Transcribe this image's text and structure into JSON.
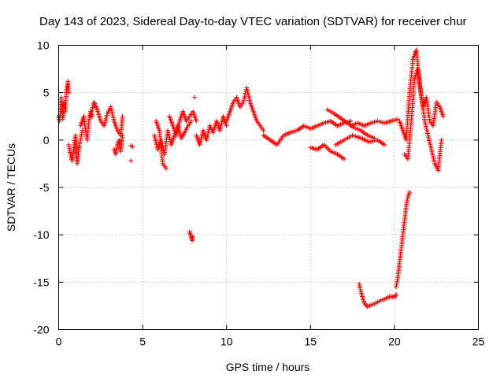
{
  "chart_data": {
    "type": "scatter",
    "title": "Day 143 of 2023, Sidereal Day-to-day VTEC variation (SDTVAR) for receiver chur",
    "xlabel": "GPS time / hours",
    "ylabel": "SDTVAR / TECUs",
    "xlim": [
      0,
      25
    ],
    "ylim": [
      -20,
      10
    ],
    "xticks": [
      "0",
      "5",
      "10",
      "15",
      "20",
      "25"
    ],
    "yticks": [
      "10",
      "5",
      "0",
      "-5",
      "-10",
      "-15",
      "-20"
    ],
    "grid": true,
    "marker": "+",
    "series": [
      {
        "name": "SDTVAR",
        "color": "#ff0000",
        "segments": [
          {
            "x": [
              0.0,
              0.05,
              0.1,
              0.15,
              0.2,
              0.25,
              0.3,
              0.35,
              0.4,
              0.45,
              0.5,
              0.55,
              0.6
            ],
            "y": [
              2.5,
              2.0,
              3.0,
              4.5,
              3.0,
              2.2,
              3.5,
              4.0,
              3.0,
              5.0,
              5.5,
              6.2,
              5.0
            ]
          },
          {
            "x": [
              0.6,
              0.7,
              0.8,
              0.9,
              1.0,
              1.1,
              1.2,
              1.3,
              1.4
            ],
            "y": [
              -0.5,
              -1.5,
              -2.2,
              -1.0,
              0.5,
              -2.5,
              -1.0,
              0.0,
              1.0
            ]
          },
          {
            "x": [
              1.3,
              1.4,
              1.5,
              1.6,
              1.7,
              1.8,
              1.9,
              2.0
            ],
            "y": [
              1.5,
              2.0,
              2.5,
              1.0,
              0.0,
              2.0,
              3.0,
              2.5
            ]
          },
          {
            "x": [
              1.9,
              2.1,
              2.3,
              2.5,
              2.7,
              2.9,
              3.1,
              3.3,
              3.5,
              3.7,
              3.8
            ],
            "y": [
              2.5,
              4.0,
              3.2,
              2.0,
              1.5,
              2.8,
              3.5,
              2.0,
              1.0,
              0.5,
              2.5
            ]
          },
          {
            "x": [
              3.3,
              3.4,
              3.5,
              3.6,
              3.7,
              3.8
            ],
            "y": [
              -1.0,
              -1.5,
              -0.5,
              0.0,
              -1.2,
              0.5
            ]
          },
          {
            "x": [
              4.3,
              4.4
            ],
            "y": [
              -0.6,
              -0.7
            ]
          },
          {
            "x": [
              4.3
            ],
            "y": [
              -2.2
            ]
          },
          {
            "x": [
              5.7,
              5.9,
              6.1,
              6.3,
              6.5,
              6.7,
              6.9,
              7.1,
              7.3,
              7.5,
              7.7,
              7.9
            ],
            "y": [
              0.5,
              -1.0,
              0.0,
              -1.5,
              1.0,
              -0.5,
              0.5,
              1.5,
              0.2,
              0.8,
              1.5,
              2.0
            ]
          },
          {
            "x": [
              5.8,
              6.0,
              6.2,
              6.4
            ],
            "y": [
              2.0,
              1.0,
              -2.5,
              -3.0
            ]
          },
          {
            "x": [
              6.6,
              6.8,
              7.0,
              7.2,
              7.4,
              7.6,
              7.8,
              8.0,
              8.2
            ],
            "y": [
              2.5,
              1.5,
              0.5,
              2.0,
              3.0,
              2.0,
              2.5,
              3.0,
              2.0
            ]
          },
          {
            "x": [
              7.8,
              7.85,
              7.9,
              7.95,
              8.0
            ],
            "y": [
              -9.7,
              -10.0,
              -10.3,
              -10.6,
              -10.2
            ]
          },
          {
            "x": [
              8.1
            ],
            "y": [
              4.5
            ]
          },
          {
            "x": [
              8.2,
              8.4,
              8.6,
              8.8,
              9.0,
              9.2,
              9.4,
              9.6,
              9.8,
              10.0
            ],
            "y": [
              0.5,
              -0.5,
              1.0,
              0.0,
              1.5,
              0.8,
              2.0,
              1.0,
              2.5,
              1.5
            ]
          },
          {
            "x": [
              10.0,
              10.2,
              10.4,
              10.6,
              10.8,
              11.0,
              11.2,
              11.4,
              11.6,
              11.8,
              12.0,
              12.2
            ],
            "y": [
              2.0,
              3.0,
              4.0,
              4.5,
              3.5,
              4.0,
              5.5,
              4.0,
              3.0,
              2.0,
              1.5,
              1.0
            ]
          },
          {
            "x": [
              12.2,
              12.6,
              13.0,
              13.4,
              13.8,
              14.2,
              14.6,
              15.0,
              15.4,
              15.8,
              16.2,
              16.6,
              17.0,
              17.4
            ],
            "y": [
              0.5,
              0.0,
              -0.5,
              0.5,
              0.8,
              1.0,
              1.5,
              1.2,
              1.5,
              1.8,
              2.0,
              1.5,
              1.8,
              2.0
            ]
          },
          {
            "x": [
              16.0,
              16.4,
              16.8,
              17.2,
              17.6,
              18.0,
              18.4,
              18.8
            ],
            "y": [
              3.2,
              2.8,
              2.3,
              1.8,
              1.3,
              1.0,
              0.5,
              0.2
            ]
          },
          {
            "x": [
              15.0,
              15.4,
              15.8,
              16.2,
              16.6,
              17.0
            ],
            "y": [
              -0.8,
              -1.0,
              -0.5,
              -1.2,
              -1.5,
              -2.0
            ]
          },
          {
            "x": [
              16.5,
              17.0,
              17.5,
              18.0,
              18.5,
              19.0,
              19.4
            ],
            "y": [
              -0.5,
              0.0,
              0.5,
              0.2,
              -0.2,
              0.0,
              -0.5
            ]
          },
          {
            "x": [
              17.4,
              17.8,
              18.2,
              18.6,
              19.0,
              19.4,
              19.8,
              20.2
            ],
            "y": [
              1.5,
              1.8,
              1.5,
              1.8,
              2.0,
              1.8,
              2.0,
              2.2
            ]
          },
          {
            "x": [
              17.9,
              18.0,
              18.2,
              18.4,
              18.6,
              18.8,
              19.0,
              19.2,
              19.4,
              19.6,
              19.8,
              20.0,
              20.1
            ],
            "y": [
              -15.2,
              -16.0,
              -17.2,
              -17.6,
              -17.4,
              -17.3,
              -17.1,
              -16.9,
              -16.8,
              -16.6,
              -16.5,
              -16.6,
              -16.3
            ]
          },
          {
            "x": [
              20.1,
              20.2,
              20.3,
              20.4,
              20.5,
              20.6,
              20.7,
              20.8,
              20.9
            ],
            "y": [
              -15.5,
              -14.5,
              -13.0,
              -11.5,
              -10.0,
              -8.5,
              -7.0,
              -6.0,
              -5.5
            ]
          },
          {
            "x": [
              20.3,
              20.5,
              20.7,
              20.9,
              21.1,
              21.3,
              21.5,
              21.7,
              21.9,
              22.1,
              22.3,
              22.5,
              22.7,
              22.9
            ],
            "y": [
              2.0,
              1.0,
              0.0,
              5.0,
              8.5,
              9.5,
              6.0,
              3.5,
              4.5,
              2.0,
              1.5,
              4.0,
              3.5,
              2.5
            ]
          },
          {
            "x": [
              20.6,
              20.8,
              21.0,
              21.2,
              21.4,
              21.6,
              21.8,
              22.0,
              22.2,
              22.4,
              22.6,
              22.8
            ],
            "y": [
              -1.5,
              -2.0,
              2.0,
              6.5,
              7.5,
              4.5,
              2.0,
              0.5,
              -1.0,
              -2.5,
              -3.2,
              0.0
            ]
          }
        ]
      }
    ]
  }
}
